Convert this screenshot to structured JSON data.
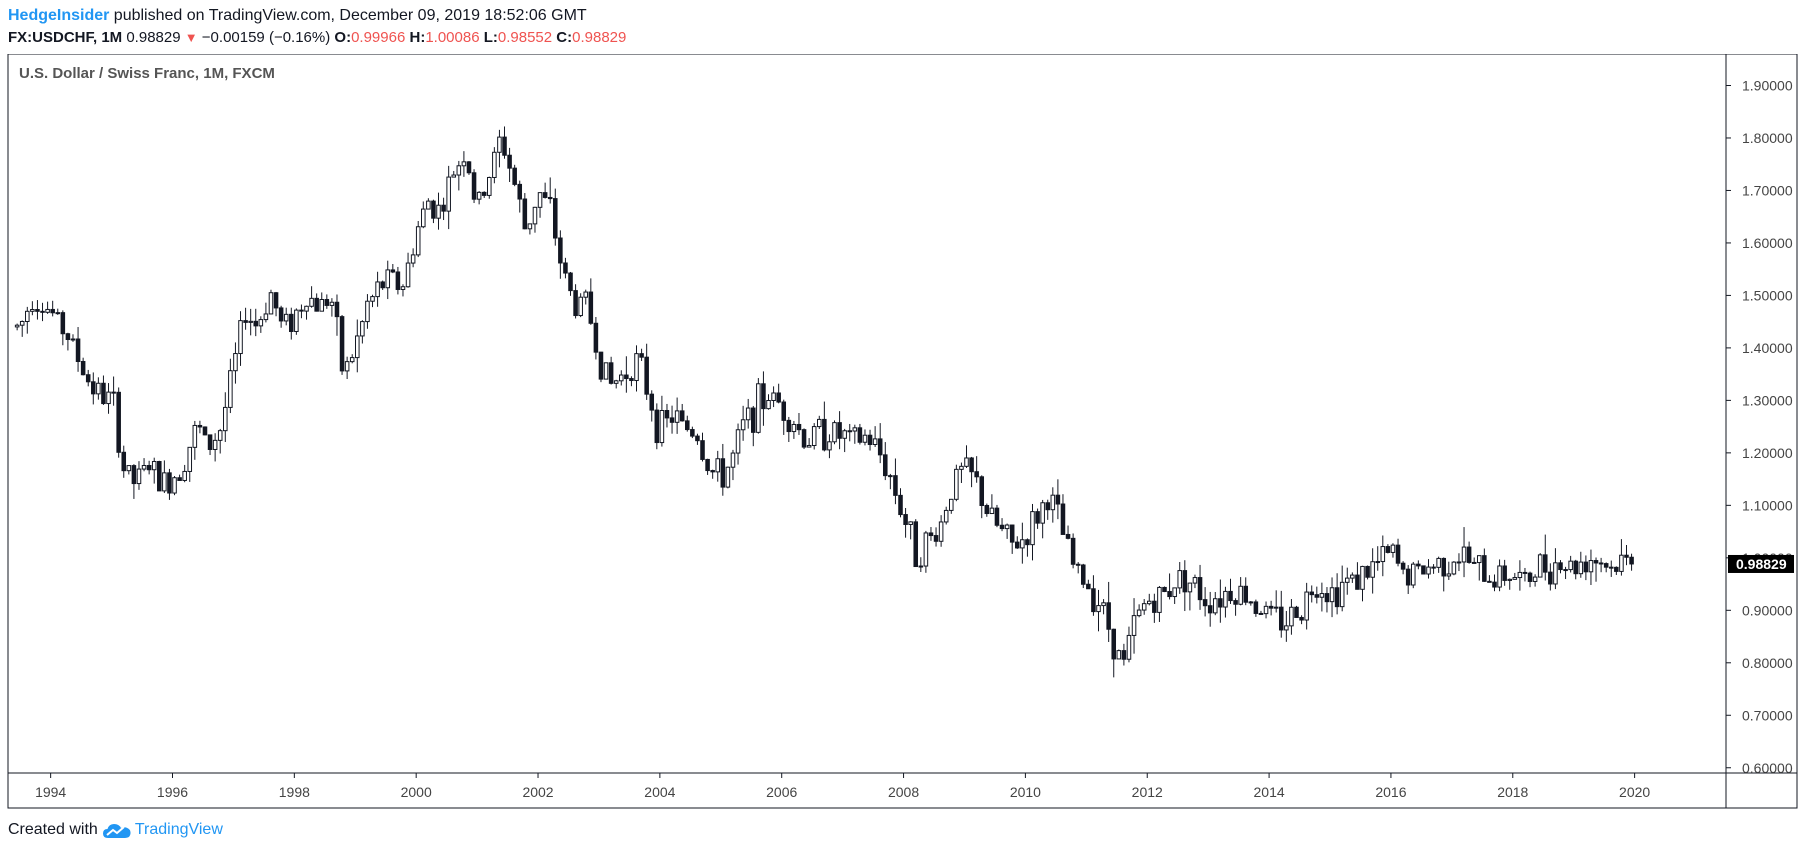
{
  "header": {
    "author": "HedgeInsider",
    "published_text": " published on TradingView.com, December 09, 2019 18:52:06 GMT",
    "symbol": "FX:USDCHF, 1M",
    "last": "0.98829",
    "change": "−0.00159 (−0.16%)",
    "o_label": "O:",
    "o_value": "0.99966",
    "h_label": "H:",
    "h_value": "1.00086",
    "l_label": "L:",
    "l_value": "0.98552",
    "c_label": "C:",
    "c_value": "0.98829"
  },
  "footer": {
    "created_with": "Created with",
    "brand": "TradingView"
  },
  "colors": {
    "candle": "#131722",
    "axis": "#131722",
    "accent": "#2196f3",
    "down": "#ef5350",
    "price_tag_bg": "#000000"
  },
  "chart_data": {
    "type": "candlestick",
    "title": "U.S. Dollar / Swiss Franc, 1M, FXCM",
    "x_ticks": [
      "1994",
      "1996",
      "1998",
      "2000",
      "2002",
      "2004",
      "2006",
      "2008",
      "2010",
      "2012",
      "2014",
      "2016",
      "2018",
      "2020"
    ],
    "y_ticks": [
      "0.60000",
      "0.70000",
      "0.80000",
      "0.90000",
      "1.00000",
      "1.10000",
      "1.20000",
      "1.30000",
      "1.40000",
      "1.50000",
      "1.60000",
      "1.70000",
      "1.80000",
      "1.90000"
    ],
    "ylim": [
      0.59,
      1.96
    ],
    "xlim": [
      1993.3,
      2021.5
    ],
    "last_price": "0.98829",
    "last_value": 0.98829,
    "series_approx_monthly_close": [
      [
        1993.5,
        1.44
      ],
      [
        1993.7,
        1.5
      ],
      [
        1994.0,
        1.47
      ],
      [
        1994.3,
        1.42
      ],
      [
        1994.6,
        1.34
      ],
      [
        1994.9,
        1.3
      ],
      [
        1995.0,
        1.31
      ],
      [
        1995.2,
        1.17
      ],
      [
        1995.4,
        1.14
      ],
      [
        1995.6,
        1.18
      ],
      [
        1995.8,
        1.14
      ],
      [
        1996.0,
        1.15
      ],
      [
        1996.2,
        1.19
      ],
      [
        1996.4,
        1.25
      ],
      [
        1996.6,
        1.21
      ],
      [
        1996.8,
        1.25
      ],
      [
        1997.0,
        1.36
      ],
      [
        1997.2,
        1.47
      ],
      [
        1997.4,
        1.44
      ],
      [
        1997.6,
        1.51
      ],
      [
        1997.8,
        1.44
      ],
      [
        1998.0,
        1.46
      ],
      [
        1998.2,
        1.5
      ],
      [
        1998.4,
        1.48
      ],
      [
        1998.6,
        1.5
      ],
      [
        1998.8,
        1.35
      ],
      [
        1999.0,
        1.4
      ],
      [
        1999.2,
        1.48
      ],
      [
        1999.5,
        1.53
      ],
      [
        1999.8,
        1.52
      ],
      [
        2000.0,
        1.62
      ],
      [
        2000.2,
        1.68
      ],
      [
        2000.4,
        1.66
      ],
      [
        2000.6,
        1.73
      ],
      [
        2000.8,
        1.78
      ],
      [
        2001.0,
        1.66
      ],
      [
        2001.2,
        1.73
      ],
      [
        2001.4,
        1.8
      ],
      [
        2001.6,
        1.72
      ],
      [
        2001.8,
        1.62
      ],
      [
        2002.0,
        1.7
      ],
      [
        2002.2,
        1.66
      ],
      [
        2002.4,
        1.55
      ],
      [
        2002.6,
        1.48
      ],
      [
        2002.8,
        1.49
      ],
      [
        2003.0,
        1.38
      ],
      [
        2003.2,
        1.33
      ],
      [
        2003.4,
        1.35
      ],
      [
        2003.6,
        1.38
      ],
      [
        2003.8,
        1.32
      ],
      [
        2004.0,
        1.24
      ],
      [
        2004.2,
        1.27
      ],
      [
        2004.4,
        1.25
      ],
      [
        2004.6,
        1.24
      ],
      [
        2004.8,
        1.17
      ],
      [
        2005.0,
        1.15
      ],
      [
        2005.2,
        1.19
      ],
      [
        2005.4,
        1.26
      ],
      [
        2005.6,
        1.29
      ],
      [
        2005.8,
        1.31
      ],
      [
        2006.0,
        1.29
      ],
      [
        2006.2,
        1.26
      ],
      [
        2006.4,
        1.22
      ],
      [
        2006.6,
        1.24
      ],
      [
        2006.8,
        1.24
      ],
      [
        2007.0,
        1.23
      ],
      [
        2007.2,
        1.22
      ],
      [
        2007.4,
        1.23
      ],
      [
        2007.6,
        1.2
      ],
      [
        2007.8,
        1.15
      ],
      [
        2008.0,
        1.08
      ],
      [
        2008.2,
        1.01
      ],
      [
        2008.4,
        1.03
      ],
      [
        2008.6,
        1.06
      ],
      [
        2008.8,
        1.14
      ],
      [
        2009.0,
        1.17
      ],
      [
        2009.2,
        1.14
      ],
      [
        2009.4,
        1.08
      ],
      [
        2009.6,
        1.05
      ],
      [
        2009.8,
        1.02
      ],
      [
        2010.0,
        1.04
      ],
      [
        2010.2,
        1.08
      ],
      [
        2010.4,
        1.12
      ],
      [
        2010.6,
        1.05
      ],
      [
        2010.8,
        0.98
      ],
      [
        2011.0,
        0.95
      ],
      [
        2011.2,
        0.92
      ],
      [
        2011.4,
        0.86
      ],
      [
        2011.6,
        0.79
      ],
      [
        2011.8,
        0.88
      ],
      [
        2012.0,
        0.92
      ],
      [
        2012.2,
        0.92
      ],
      [
        2012.4,
        0.95
      ],
      [
        2012.6,
        0.97
      ],
      [
        2012.8,
        0.94
      ],
      [
        2013.0,
        0.92
      ],
      [
        2013.2,
        0.93
      ],
      [
        2013.4,
        0.94
      ],
      [
        2013.6,
        0.93
      ],
      [
        2013.8,
        0.91
      ],
      [
        2014.0,
        0.89
      ],
      [
        2014.2,
        0.88
      ],
      [
        2014.4,
        0.89
      ],
      [
        2014.6,
        0.92
      ],
      [
        2014.8,
        0.96
      ],
      [
        2015.0,
        0.93
      ],
      [
        2015.2,
        0.95
      ],
      [
        2015.4,
        0.96
      ],
      [
        2015.6,
        0.97
      ],
      [
        2015.8,
        0.99
      ],
      [
        2016.0,
        1.01
      ],
      [
        2016.2,
        0.97
      ],
      [
        2016.4,
        0.97
      ],
      [
        2016.6,
        0.98
      ],
      [
        2016.8,
        0.99
      ],
      [
        2017.0,
        1.0
      ],
      [
        2017.2,
        1.0
      ],
      [
        2017.4,
        0.98
      ],
      [
        2017.6,
        0.96
      ],
      [
        2017.8,
        0.97
      ],
      [
        2018.0,
        0.97
      ],
      [
        2018.2,
        0.95
      ],
      [
        2018.4,
        0.98
      ],
      [
        2018.6,
        0.99
      ],
      [
        2018.8,
        0.99
      ],
      [
        2019.0,
        0.98
      ],
      [
        2019.2,
        1.0
      ],
      [
        2019.4,
        1.0
      ],
      [
        2019.6,
        0.98
      ],
      [
        2019.8,
        0.99
      ],
      [
        2019.95,
        0.98829
      ]
    ]
  }
}
